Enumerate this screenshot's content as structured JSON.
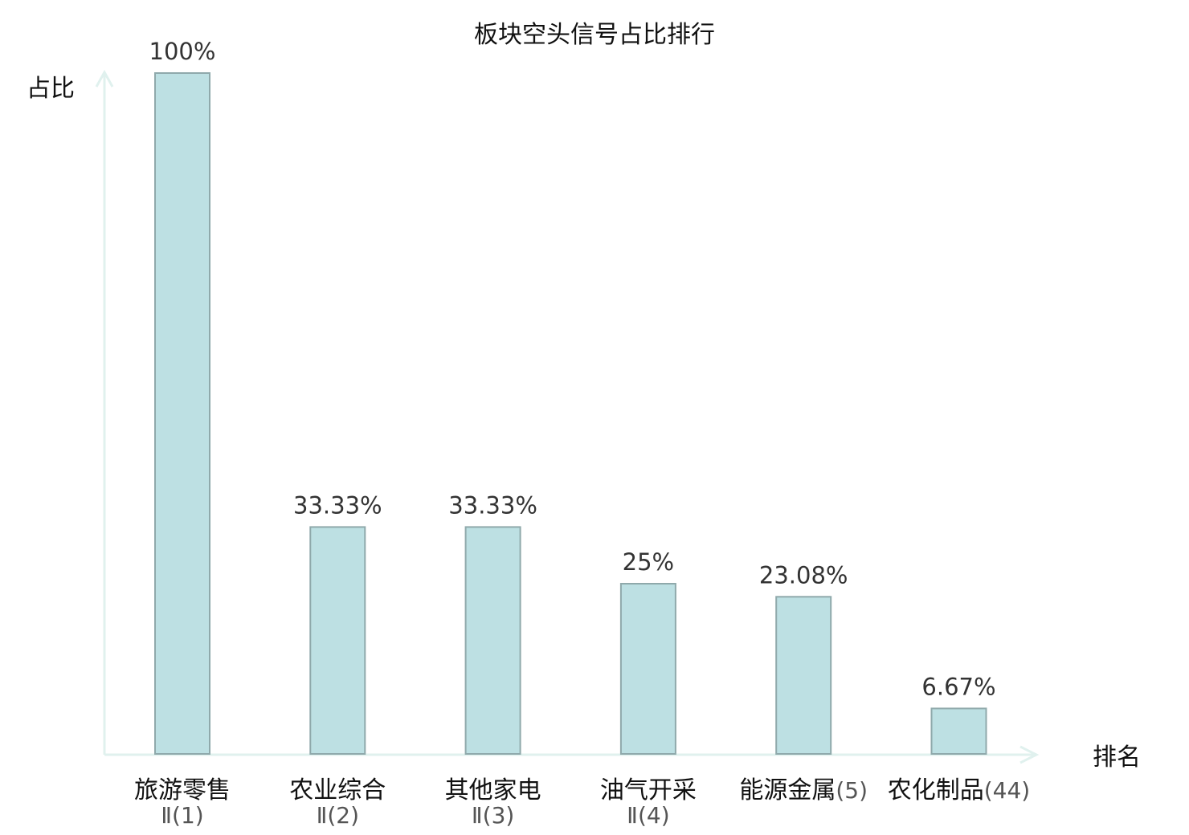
{
  "chart_data": {
    "type": "bar",
    "title": "板块空头信号占比排行",
    "ylabel": "占比",
    "xlabel": "排名",
    "ylim": [
      0,
      100
    ],
    "grid": false,
    "categories": [
      {
        "name": "旅游零售",
        "rank": "Ⅱ(1)",
        "highlight": false
      },
      {
        "name": "农业综合",
        "rank": "Ⅱ(2)",
        "highlight": false
      },
      {
        "name": "其他家电",
        "rank": "Ⅱ(3)",
        "highlight": false
      },
      {
        "name": "油气开采",
        "rank": "Ⅱ(4)",
        "highlight": false
      },
      {
        "name": "能源金属",
        "rank": "(5)",
        "highlight": false
      },
      {
        "name": "农化制品",
        "rank": "(44)",
        "highlight": true
      }
    ],
    "values": [
      100,
      33.33,
      33.33,
      25,
      23.08,
      6.67
    ],
    "value_labels": [
      "100%",
      "33.33%",
      "33.33%",
      "25%",
      "23.08%",
      "6.67%"
    ]
  },
  "colors": {
    "bar_fill": "#bde0e3",
    "bar_stroke": "#8fa9ab",
    "axis": "#e0f1ee",
    "highlight": "#e3000f",
    "text": "#111111",
    "value_text": "#333333",
    "rank_text": "#555555"
  }
}
